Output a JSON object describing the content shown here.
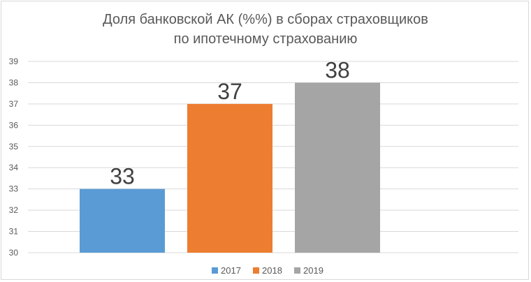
{
  "chart_data": {
    "type": "bar",
    "title_line1": "Доля банковской АК (%%) в сборах страховщиков",
    "title_line2": "по ипотечному страхованию",
    "categories": [
      "2017",
      "2018",
      "2019"
    ],
    "values": [
      33,
      37,
      38
    ],
    "colors": [
      "#5b9bd5",
      "#ed7d31",
      "#a5a5a5"
    ],
    "ylim": [
      30,
      39
    ],
    "yticks": [
      30,
      31,
      32,
      33,
      34,
      35,
      36,
      37,
      38,
      39
    ],
    "grid": true,
    "legend_position": "bottom",
    "data_labels": [
      "33",
      "37",
      "38"
    ]
  }
}
